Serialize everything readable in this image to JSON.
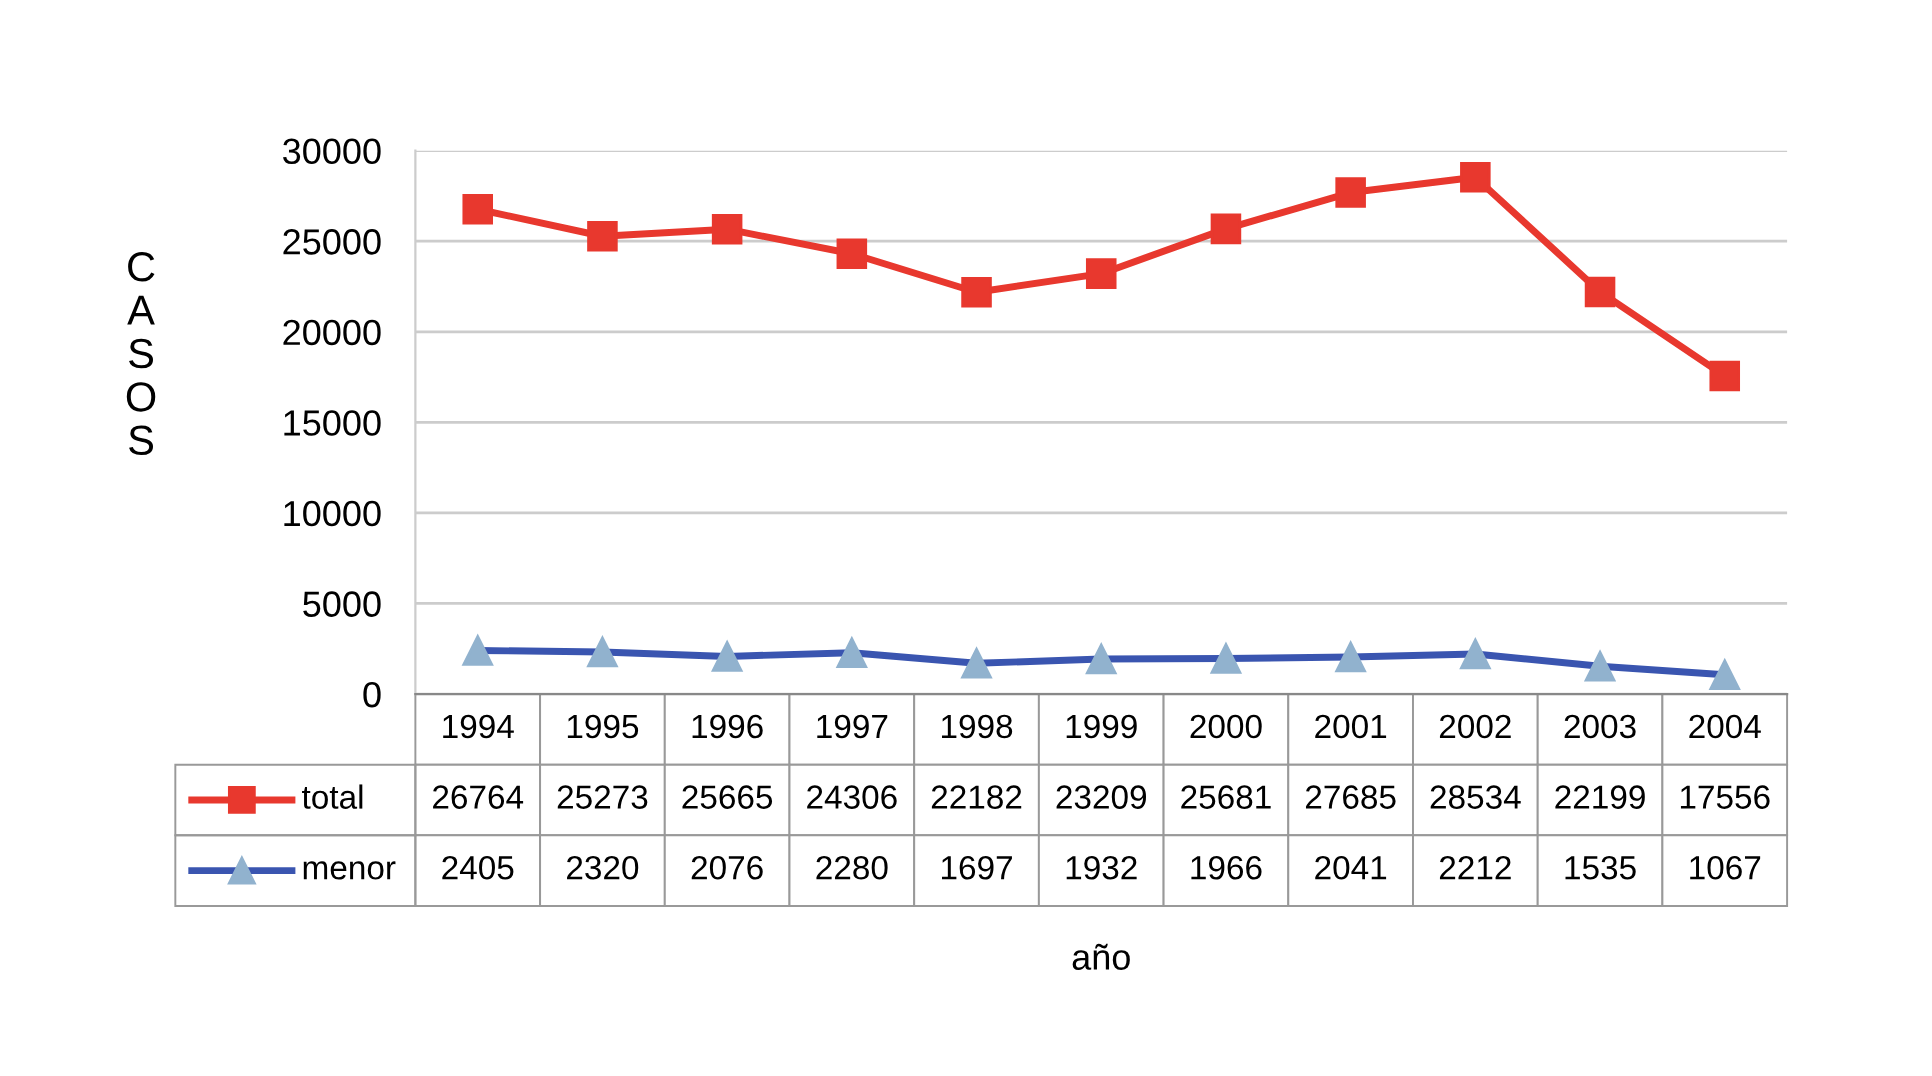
{
  "chart_data": {
    "type": "line",
    "ylabel": "CASOS",
    "annotations": [
      "año"
    ],
    "categories": [
      "1994",
      "1995",
      "1996",
      "1997",
      "1998",
      "1999",
      "2000",
      "2001",
      "2002",
      "2003",
      "2004"
    ],
    "series": [
      {
        "name": "total",
        "color": "#e8382e",
        "marker": "square",
        "values": [
          26764,
          25273,
          25665,
          24306,
          22182,
          23209,
          25681,
          27685,
          28534,
          22199,
          17556
        ]
      },
      {
        "name": "menor",
        "color": "#3a55b0",
        "marker": "triangle",
        "values": [
          2405,
          2320,
          2076,
          2280,
          1697,
          1932,
          1966,
          2041,
          2212,
          1535,
          1067
        ]
      }
    ],
    "ylim": [
      0,
      30000
    ],
    "yticks": [
      0,
      5000,
      10000,
      15000,
      20000,
      25000,
      30000
    ],
    "grid": "y",
    "legend": "bottom left",
    "data_labels": true
  }
}
